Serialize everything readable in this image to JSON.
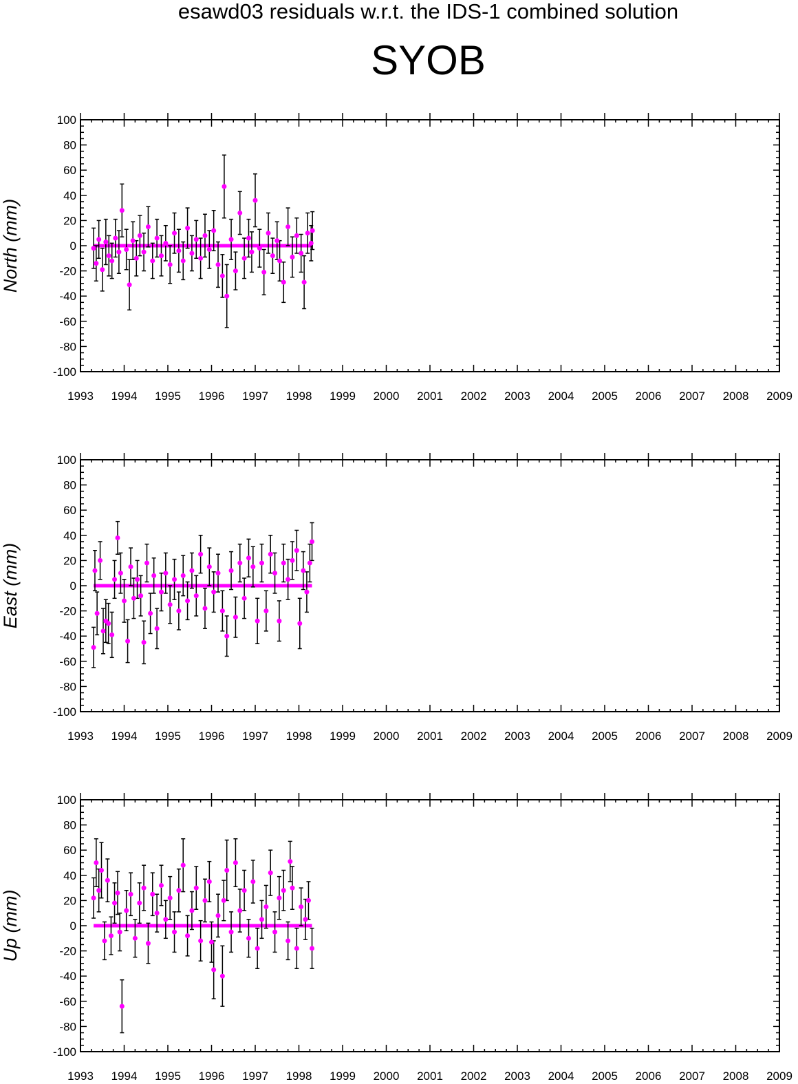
{
  "figure": {
    "suptitle": "esawd03 residuals w.r.t. the IDS-1 combined solution",
    "station": "SYOB"
  },
  "style": {
    "marker_color": "#ff00ff",
    "errorbar_color": "#000000",
    "frame_color": "#000000"
  },
  "chart_data": [
    {
      "type": "scatter",
      "name": "north",
      "ylabel": "North (mm)",
      "ylim": [
        -100,
        100
      ],
      "xlim": [
        1993,
        2009
      ],
      "yticks": [
        100,
        80,
        60,
        40,
        20,
        0,
        -20,
        -40,
        -60,
        -80,
        -100
      ],
      "xticks": [
        "1993",
        "1994",
        "1995",
        "1996",
        "1997",
        "1998",
        "1999",
        "2000",
        "2001",
        "2002",
        "2003",
        "2004",
        "2005",
        "2006",
        "2007",
        "2008",
        "2009"
      ],
      "errorbars": true,
      "x": [
        1993.3,
        1993.36,
        1993.42,
        1993.5,
        1993.58,
        1993.65,
        1993.72,
        1993.8,
        1993.88,
        1993.95,
        1994.05,
        1994.12,
        1994.2,
        1994.28,
        1994.36,
        1994.45,
        1994.55,
        1994.65,
        1994.75,
        1994.85,
        1994.95,
        1995.05,
        1995.15,
        1995.25,
        1995.35,
        1995.45,
        1995.55,
        1995.65,
        1995.75,
        1995.85,
        1995.95,
        1996.05,
        1996.15,
        1996.25,
        1996.29,
        1996.35,
        1996.45,
        1996.55,
        1996.65,
        1996.75,
        1996.85,
        1996.92,
        1997.0,
        1997.1,
        1997.2,
        1997.3,
        1997.4,
        1997.5,
        1997.56,
        1997.65,
        1997.75,
        1997.85,
        1997.95,
        1998.05,
        1998.12,
        1998.2,
        1998.28,
        1998.31
      ],
      "y": [
        -2,
        -14,
        5,
        -19,
        3,
        -8,
        -12,
        6,
        -5,
        28,
        -3,
        -31,
        4,
        -10,
        8,
        -5,
        15,
        -12,
        6,
        -8,
        2,
        -15,
        10,
        -4,
        -12,
        14,
        -6,
        5,
        -10,
        8,
        -3,
        12,
        -15,
        -24,
        47,
        -40,
        5,
        -20,
        26,
        -10,
        6,
        -5,
        36,
        -2,
        -21,
        10,
        -8,
        4,
        -12,
        -29,
        15,
        -9,
        8,
        -6,
        -29,
        10,
        2,
        12
      ],
      "err": [
        16,
        14,
        15,
        17,
        18,
        16,
        14,
        15,
        17,
        21,
        16,
        20,
        15,
        14,
        16,
        15,
        16,
        14,
        15,
        16,
        14,
        15,
        16,
        17,
        15,
        16,
        14,
        15,
        16,
        17,
        15,
        16,
        18,
        17,
        25,
        25,
        16,
        15,
        17,
        16,
        15,
        16,
        21,
        15,
        18,
        16,
        14,
        15,
        16,
        16,
        15,
        16,
        14,
        15,
        21,
        16,
        14,
        15
      ]
    },
    {
      "type": "scatter",
      "name": "east",
      "ylabel": "East (mm)",
      "ylim": [
        -100,
        100
      ],
      "xlim": [
        1993,
        2009
      ],
      "yticks": [
        100,
        80,
        60,
        40,
        20,
        0,
        -20,
        -40,
        -60,
        -80,
        -100
      ],
      "xticks": [
        "1993",
        "1994",
        "1995",
        "1996",
        "1997",
        "1998",
        "1999",
        "2000",
        "2001",
        "2002",
        "2003",
        "2004",
        "2005",
        "2006",
        "2007",
        "2008",
        "2009"
      ],
      "errorbars": true,
      "x": [
        1993.3,
        1993.33,
        1993.38,
        1993.45,
        1993.52,
        1993.58,
        1993.64,
        1993.72,
        1993.78,
        1993.85,
        1993.92,
        1994.0,
        1994.08,
        1994.15,
        1994.22,
        1994.3,
        1994.38,
        1994.45,
        1994.52,
        1994.6,
        1994.68,
        1994.75,
        1994.85,
        1994.95,
        1995.05,
        1995.15,
        1995.25,
        1995.35,
        1995.45,
        1995.55,
        1995.65,
        1995.75,
        1995.85,
        1995.95,
        1996.05,
        1996.15,
        1996.25,
        1996.35,
        1996.45,
        1996.55,
        1996.65,
        1996.75,
        1996.85,
        1996.95,
        1997.05,
        1997.15,
        1997.25,
        1997.35,
        1997.45,
        1997.55,
        1997.65,
        1997.75,
        1997.85,
        1997.95,
        1998.02,
        1998.1,
        1998.18,
        1998.25,
        1998.3
      ],
      "y": [
        -49,
        12,
        -22,
        20,
        -36,
        -28,
        -30,
        -39,
        5,
        38,
        10,
        -12,
        -44,
        15,
        -10,
        5,
        -8,
        -45,
        18,
        -22,
        8,
        -34,
        -5,
        10,
        -15,
        5,
        -20,
        8,
        -12,
        12,
        -8,
        25,
        -18,
        15,
        -5,
        10,
        -20,
        -40,
        12,
        -25,
        18,
        -10,
        22,
        15,
        -28,
        18,
        -20,
        25,
        10,
        -28,
        18,
        5,
        20,
        28,
        -30,
        12,
        -5,
        18,
        35
      ],
      "err": [
        16,
        16,
        17,
        15,
        18,
        17,
        16,
        18,
        15,
        13,
        16,
        17,
        17,
        15,
        16,
        15,
        16,
        17,
        15,
        16,
        14,
        16,
        15,
        16,
        15,
        16,
        15,
        16,
        15,
        14,
        16,
        15,
        16,
        15,
        16,
        15,
        16,
        16,
        15,
        16,
        15,
        16,
        15,
        16,
        18,
        15,
        16,
        15,
        16,
        16,
        15,
        16,
        15,
        16,
        20,
        15,
        16,
        15,
        15
      ]
    },
    {
      "type": "scatter",
      "name": "up",
      "ylabel": "Up (mm)",
      "ylim": [
        -100,
        100
      ],
      "xlim": [
        1993,
        2009
      ],
      "yticks": [
        100,
        80,
        60,
        40,
        20,
        0,
        -20,
        -40,
        -60,
        -80,
        -100
      ],
      "xticks": [
        "1993",
        "1994",
        "1995",
        "1996",
        "1997",
        "1998",
        "1999",
        "2000",
        "2001",
        "2002",
        "2003",
        "2004",
        "2005",
        "2006",
        "2007",
        "2008",
        "2009"
      ],
      "errorbars": true,
      "x": [
        1993.3,
        1993.36,
        1993.42,
        1993.48,
        1993.55,
        1993.62,
        1993.7,
        1993.78,
        1993.85,
        1993.9,
        1993.95,
        1994.05,
        1994.15,
        1994.25,
        1994.35,
        1994.45,
        1994.55,
        1994.65,
        1994.75,
        1994.85,
        1994.95,
        1995.05,
        1995.15,
        1995.25,
        1995.35,
        1995.45,
        1995.55,
        1995.65,
        1995.75,
        1995.85,
        1995.95,
        1996.0,
        1996.05,
        1996.15,
        1996.25,
        1996.28,
        1996.35,
        1996.45,
        1996.55,
        1996.65,
        1996.75,
        1996.85,
        1996.95,
        1997.05,
        1997.15,
        1997.25,
        1997.35,
        1997.45,
        1997.55,
        1997.65,
        1997.75,
        1997.8,
        1997.85,
        1997.95,
        1998.05,
        1998.15,
        1998.22,
        1998.3
      ],
      "y": [
        22,
        50,
        28,
        44,
        -12,
        36,
        -8,
        18,
        26,
        -5,
        -64,
        12,
        25,
        -10,
        18,
        30,
        -14,
        25,
        10,
        32,
        5,
        22,
        -5,
        28,
        48,
        -8,
        12,
        30,
        -12,
        20,
        35,
        -13,
        -35,
        8,
        -40,
        20,
        44,
        -5,
        50,
        12,
        28,
        -10,
        35,
        -18,
        5,
        15,
        42,
        -5,
        22,
        28,
        -12,
        51,
        30,
        -18,
        15,
        5,
        20,
        -18
      ],
      "err": [
        16,
        19,
        17,
        22,
        15,
        17,
        15,
        16,
        17,
        15,
        21,
        16,
        17,
        15,
        16,
        18,
        16,
        17,
        15,
        16,
        15,
        17,
        16,
        17,
        21,
        16,
        15,
        17,
        16,
        17,
        16,
        16,
        23,
        17,
        24,
        16,
        24,
        16,
        19,
        17,
        16,
        15,
        17,
        16,
        15,
        17,
        18,
        16,
        17,
        16,
        15,
        16,
        17,
        16,
        15,
        16,
        15,
        16
      ]
    }
  ]
}
